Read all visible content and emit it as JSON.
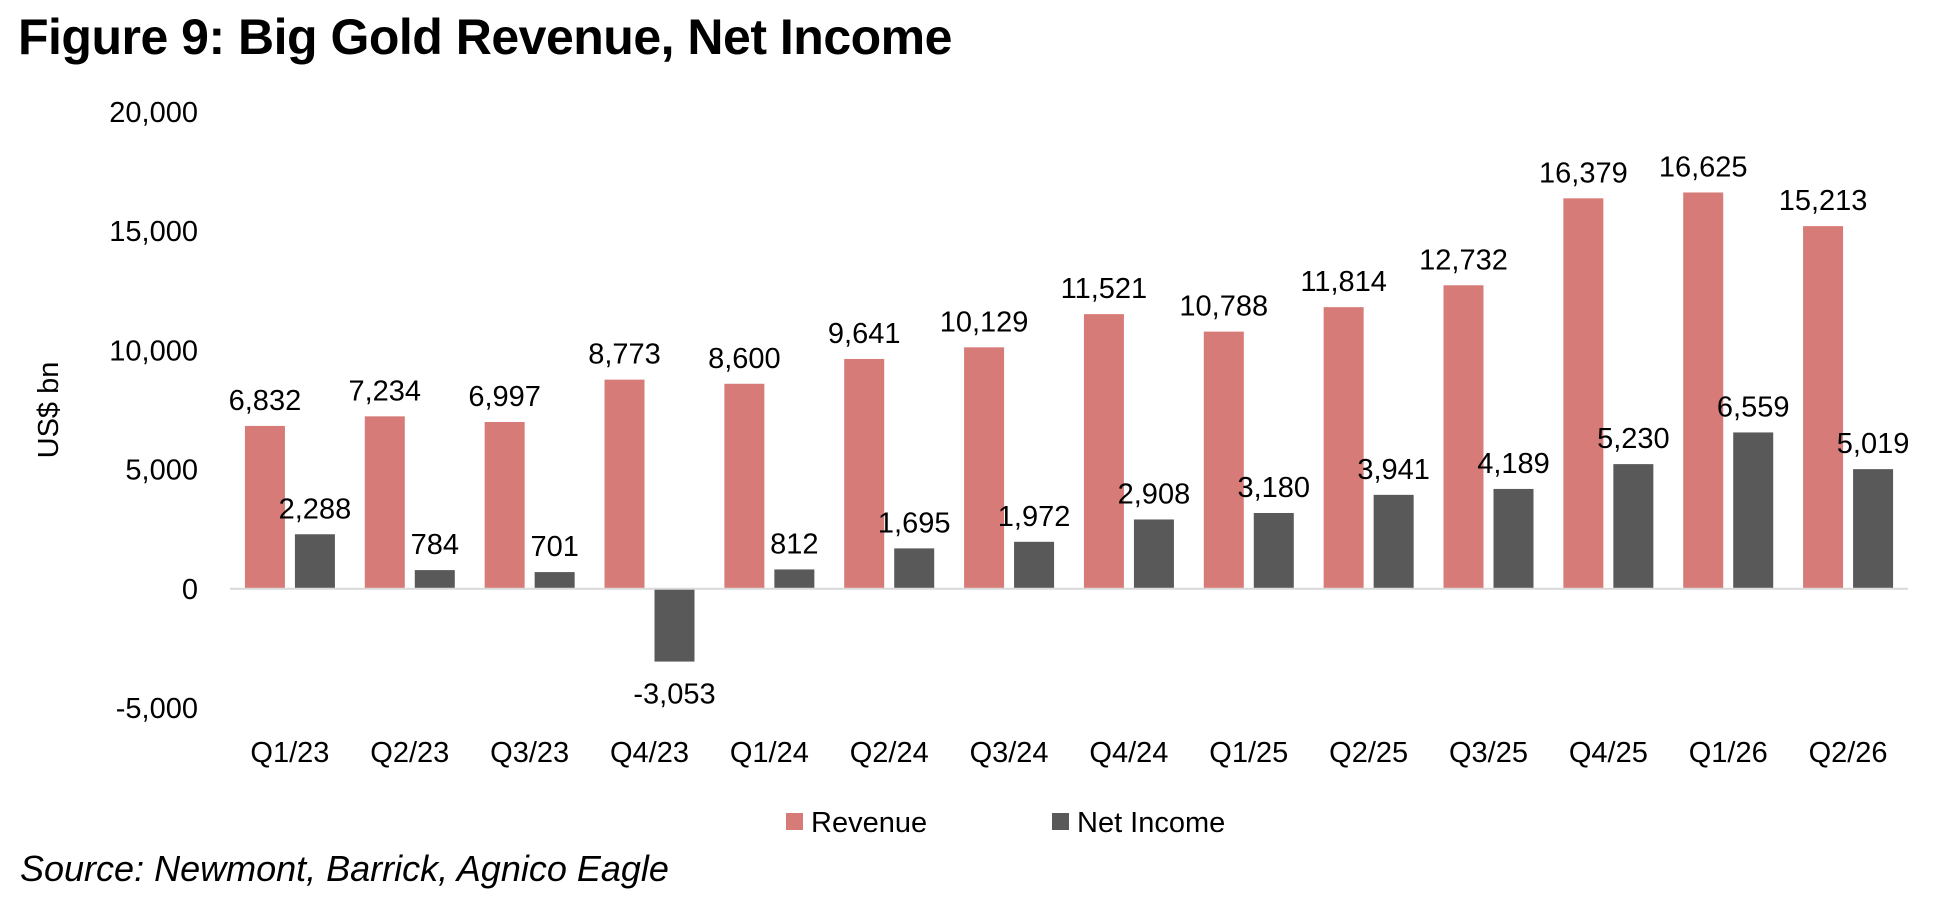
{
  "title": "Figure 9: Big Gold Revenue, Net Income",
  "source": "Source: Newmont, Barrick, Agnico Eagle",
  "colors": {
    "revenue": "#D77B78",
    "net_income": "#595959",
    "axis": "#D9D9D9"
  },
  "chart_data": {
    "type": "bar",
    "title": "",
    "xlabel": "",
    "ylabel": "US$ bn",
    "ylim": [
      -5000,
      20000
    ],
    "yticks": [
      -5000,
      0,
      5000,
      10000,
      15000,
      20000
    ],
    "ytick_labels": [
      "-5,000",
      "0",
      "5,000",
      "10,000",
      "15,000",
      "20,000"
    ],
    "grid": false,
    "legend_position": "bottom",
    "categories": [
      "Q1/23",
      "Q2/23",
      "Q3/23",
      "Q4/23",
      "Q1/24",
      "Q2/24",
      "Q3/24",
      "Q4/24",
      "Q1/25",
      "Q2/25",
      "Q3/25",
      "Q4/25",
      "Q1/26",
      "Q2/26"
    ],
    "series": [
      {
        "name": "Revenue",
        "values": [
          6832,
          7234,
          6997,
          8773,
          8600,
          9641,
          10129,
          11521,
          10788,
          11814,
          12732,
          16379,
          16625,
          15213
        ],
        "labels": [
          "6,832",
          "7,234",
          "6,997",
          "8,773",
          "8,600",
          "9,641",
          "10,129",
          "11,521",
          "10,788",
          "11,814",
          "12,732",
          "16,379",
          "16,625",
          "15,213"
        ]
      },
      {
        "name": "Net Income",
        "values": [
          2288,
          784,
          701,
          -3053,
          812,
          1695,
          1972,
          2908,
          3180,
          3941,
          4189,
          5230,
          6559,
          5019
        ],
        "labels": [
          "2,288",
          "784",
          "701",
          "-3,053",
          "812",
          "1,695",
          "1,972",
          "2,908",
          "3,180",
          "3,941",
          "4,189",
          "5,230",
          "6,559",
          "5,019"
        ]
      }
    ]
  }
}
